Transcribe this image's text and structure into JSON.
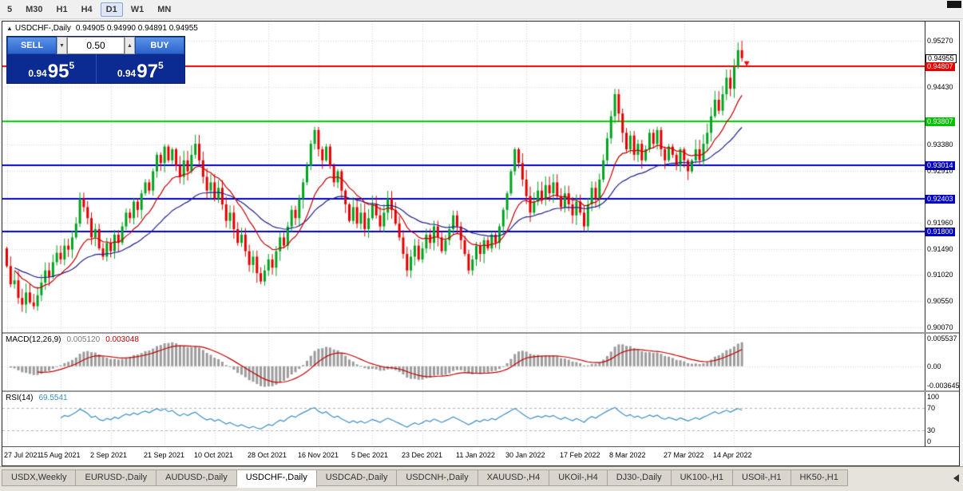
{
  "window": {
    "collapse_glyph": "▲",
    "title": "USDCHF-,Daily",
    "ohlc_line": "0.94905 0.94990 0.94891 0.94955"
  },
  "toolbar": {
    "timeframes": [
      {
        "label": "5",
        "active": false
      },
      {
        "label": "M30",
        "active": false
      },
      {
        "label": "H1",
        "active": false
      },
      {
        "label": "H4",
        "active": false
      },
      {
        "label": "D1",
        "active": true
      },
      {
        "label": "W1",
        "active": false
      },
      {
        "label": "MN",
        "active": false
      }
    ]
  },
  "trade_panel": {
    "sell_label": "SELL",
    "buy_label": "BUY",
    "lot_size": "0.50",
    "spin_down_glyph": "▼",
    "spin_up_glyph": "▲",
    "sell_price": {
      "prefix": "0.94",
      "big": "95",
      "sup": "5"
    },
    "buy_price": {
      "prefix": "0.94",
      "big": "97",
      "sup": "5"
    }
  },
  "chart_data": {
    "type": "candlestick",
    "symbol": "USDCHF-",
    "timeframe": "Daily",
    "ohlc_display": {
      "open": "0.94905",
      "high": "0.94990",
      "low": "0.94891",
      "close": "0.94955"
    },
    "y_axis": {
      "max": 0.9562,
      "min": 0.8998
    },
    "first_open": 0.915,
    "high_watermark": 0.9527,
    "closes": [
      0.9118,
      0.9085,
      0.9092,
      0.906,
      0.9048,
      0.907,
      0.9052,
      0.9045,
      0.9065,
      0.9088,
      0.911,
      0.9098,
      0.9125,
      0.9142,
      0.913,
      0.9155,
      0.9148,
      0.917,
      0.9195,
      0.924,
      0.9225,
      0.9205,
      0.917,
      0.9185,
      0.915,
      0.9135,
      0.916,
      0.9145,
      0.9175,
      0.916,
      0.919,
      0.9215,
      0.9205,
      0.9235,
      0.922,
      0.925,
      0.927,
      0.9255,
      0.929,
      0.932,
      0.9305,
      0.9335,
      0.931,
      0.933,
      0.93,
      0.928,
      0.931,
      0.929,
      0.932,
      0.934,
      0.931,
      0.928,
      0.9255,
      0.927,
      0.924,
      0.926,
      0.923,
      0.92,
      0.9215,
      0.9185,
      0.916,
      0.9175,
      0.9145,
      0.912,
      0.9135,
      0.9105,
      0.909,
      0.911,
      0.913,
      0.9115,
      0.9145,
      0.917,
      0.9155,
      0.919,
      0.922,
      0.9205,
      0.924,
      0.927,
      0.93,
      0.934,
      0.9365,
      0.933,
      0.931,
      0.9335,
      0.93,
      0.927,
      0.929,
      0.9255,
      0.923,
      0.92,
      0.9225,
      0.9195,
      0.9215,
      0.9185,
      0.9205,
      0.923,
      0.921,
      0.919,
      0.9215,
      0.924,
      0.922,
      0.9195,
      0.917,
      0.914,
      0.911,
      0.9135,
      0.9155,
      0.913,
      0.915,
      0.9175,
      0.916,
      0.919,
      0.917,
      0.9145,
      0.9165,
      0.9185,
      0.921,
      0.919,
      0.9165,
      0.914,
      0.911,
      0.913,
      0.9155,
      0.914,
      0.9165,
      0.915,
      0.9175,
      0.916,
      0.919,
      0.922,
      0.925,
      0.929,
      0.933,
      0.9305,
      0.9275,
      0.9245,
      0.9215,
      0.9235,
      0.9255,
      0.924,
      0.9265,
      0.925,
      0.927,
      0.9245,
      0.9225,
      0.925,
      0.923,
      0.921,
      0.9235,
      0.9215,
      0.919,
      0.923,
      0.926,
      0.924,
      0.9275,
      0.931,
      0.935,
      0.939,
      0.943,
      0.9395,
      0.936,
      0.933,
      0.9355,
      0.932,
      0.934,
      0.931,
      0.933,
      0.936,
      0.934,
      0.9365,
      0.933,
      0.931,
      0.9335,
      0.932,
      0.93,
      0.933,
      0.931,
      0.929,
      0.931,
      0.933,
      0.931,
      0.934,
      0.936,
      0.939,
      0.942,
      0.94,
      0.943,
      0.946,
      0.944,
      0.948,
      0.951,
      0.94955
    ],
    "hlines": [
      {
        "price": 0.94807,
        "color": "#e60000"
      },
      {
        "price": 0.93807,
        "color": "#00d200"
      },
      {
        "price": 0.93014,
        "color": "#0000c8"
      },
      {
        "price": 0.92403,
        "color": "#0000c8"
      },
      {
        "price": 0.918,
        "color": "#0000c8"
      }
    ],
    "ma_lines": [
      {
        "period": 34,
        "color": "#20208a"
      },
      {
        "period": 13,
        "color": "#c40000"
      }
    ],
    "marker": {
      "candle_index": 191,
      "price": 0.9487,
      "color": "#ff0000",
      "shape": "arrow-down"
    },
    "colors": {
      "bull": "#00a41f",
      "bear": "#e60000",
      "grid": "#d4d4d4"
    },
    "scale_labels": [
      {
        "text": "0.95270",
        "price": 0.9527,
        "type": "plain"
      },
      {
        "text": "0.94955",
        "price": 0.94955,
        "type": "current"
      },
      {
        "text": "0.94807",
        "price": 0.94807,
        "type": "red"
      },
      {
        "text": "0.94430",
        "price": 0.9443,
        "type": "plain"
      },
      {
        "text": "0.93807",
        "price": 0.93807,
        "type": "green"
      },
      {
        "text": "0.93380",
        "price": 0.9338,
        "type": "plain"
      },
      {
        "text": "0.93014",
        "price": 0.93014,
        "type": "blue"
      },
      {
        "text": "0.92910",
        "price": 0.9291,
        "type": "plain"
      },
      {
        "text": "0.92403",
        "price": 0.92403,
        "type": "blue"
      },
      {
        "text": "0.91960",
        "price": 0.9196,
        "type": "plain"
      },
      {
        "text": "0.91800",
        "price": 0.918,
        "type": "blue"
      },
      {
        "text": "0.91490",
        "price": 0.9149,
        "type": "plain"
      },
      {
        "text": "0.91020",
        "price": 0.9102,
        "type": "plain"
      },
      {
        "text": "0.90550",
        "price": 0.9055,
        "type": "plain"
      },
      {
        "text": "0.90070",
        "price": 0.9007,
        "type": "plain"
      }
    ]
  },
  "macd": {
    "label": "MACD(12,26,9)",
    "main_value": "0.005120",
    "signal_value": "0.003048",
    "hist_color": "#9c9c9c",
    "signal_color": "#c40000",
    "scale": [
      {
        "text": "0.005537",
        "value": 0.005537
      },
      {
        "text": "0.00",
        "value": 0
      },
      {
        "text": "-0.003645",
        "value": -0.003645
      }
    ]
  },
  "rsi": {
    "label": "RSI(14)",
    "value": "69.5541",
    "line_color": "#3e8fc4",
    "levels": [
      70,
      30
    ],
    "scale": [
      {
        "text": "100",
        "value": 100
      },
      {
        "text": "70",
        "value": 70
      },
      {
        "text": "30",
        "value": 30
      },
      {
        "text": "0",
        "value": 0
      }
    ]
  },
  "time_axis": {
    "labels": [
      "27 Jul 2021",
      "15 Aug 2021",
      "2 Sep 2021",
      "21 Sep 2021",
      "10 Oct 2021",
      "28 Oct 2021",
      "16 Nov 2021",
      "5 Dec 2021",
      "23 Dec 2021",
      "11 Jan 2022",
      "30 Jan 2022",
      "17 Feb 2022",
      "8 Mar 2022",
      "27 Mar 2022",
      "14 Apr 2022"
    ]
  },
  "tabs": {
    "items": [
      {
        "label": "USDX,Weekly",
        "active": false
      },
      {
        "label": "EURUSD-,Daily",
        "active": false
      },
      {
        "label": "AUDUSD-,Daily",
        "active": false
      },
      {
        "label": "USDCHF-,Daily",
        "active": true
      },
      {
        "label": "USDCAD-,Daily",
        "active": false
      },
      {
        "label": "USDCNH-,Daily",
        "active": false
      },
      {
        "label": "XAUUSD-,H4",
        "active": false
      },
      {
        "label": "UKOil-,H4",
        "active": false
      },
      {
        "label": "DJ30-,Daily",
        "active": false
      },
      {
        "label": "UK100-,H1",
        "active": false
      },
      {
        "label": "USOil-,H1",
        "active": false
      },
      {
        "label": "HK50-,H1",
        "active": false
      }
    ]
  }
}
